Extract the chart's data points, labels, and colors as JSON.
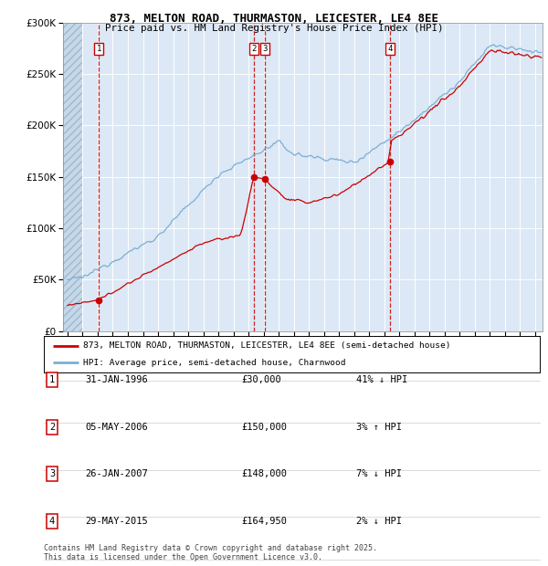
{
  "title": "873, MELTON ROAD, THURMASTON, LEICESTER, LE4 8EE",
  "subtitle": "Price paid vs. HM Land Registry's House Price Index (HPI)",
  "red_label": "873, MELTON ROAD, THURMASTON, LEICESTER, LE4 8EE (semi-detached house)",
  "blue_label": "HPI: Average price, semi-detached house, Charnwood",
  "footer": "Contains HM Land Registry data © Crown copyright and database right 2025.\nThis data is licensed under the Open Government Licence v3.0.",
  "transactions": [
    {
      "num": 1,
      "date": "31-JAN-1996",
      "price": 30000,
      "pct": "41%",
      "dir": "↓",
      "year_x": 1996.08
    },
    {
      "num": 2,
      "date": "05-MAY-2006",
      "price": 150000,
      "pct": "3%",
      "dir": "↑",
      "year_x": 2006.34
    },
    {
      "num": 3,
      "date": "26-JAN-2007",
      "price": 148000,
      "pct": "7%",
      "dir": "↓",
      "year_x": 2007.07
    },
    {
      "num": 4,
      "date": "29-MAY-2015",
      "price": 164950,
      "pct": "2%",
      "dir": "↓",
      "year_x": 2015.41
    }
  ],
  "ylim": [
    0,
    300000
  ],
  "xlim_start": 1993.7,
  "xlim_end": 2025.5,
  "hatch_end": 1995.0,
  "bg_color": "#dce8f5",
  "red_color": "#cc0000",
  "blue_color": "#7bafd4",
  "white": "#ffffff",
  "title_fontsize": 9,
  "subtitle_fontsize": 8
}
